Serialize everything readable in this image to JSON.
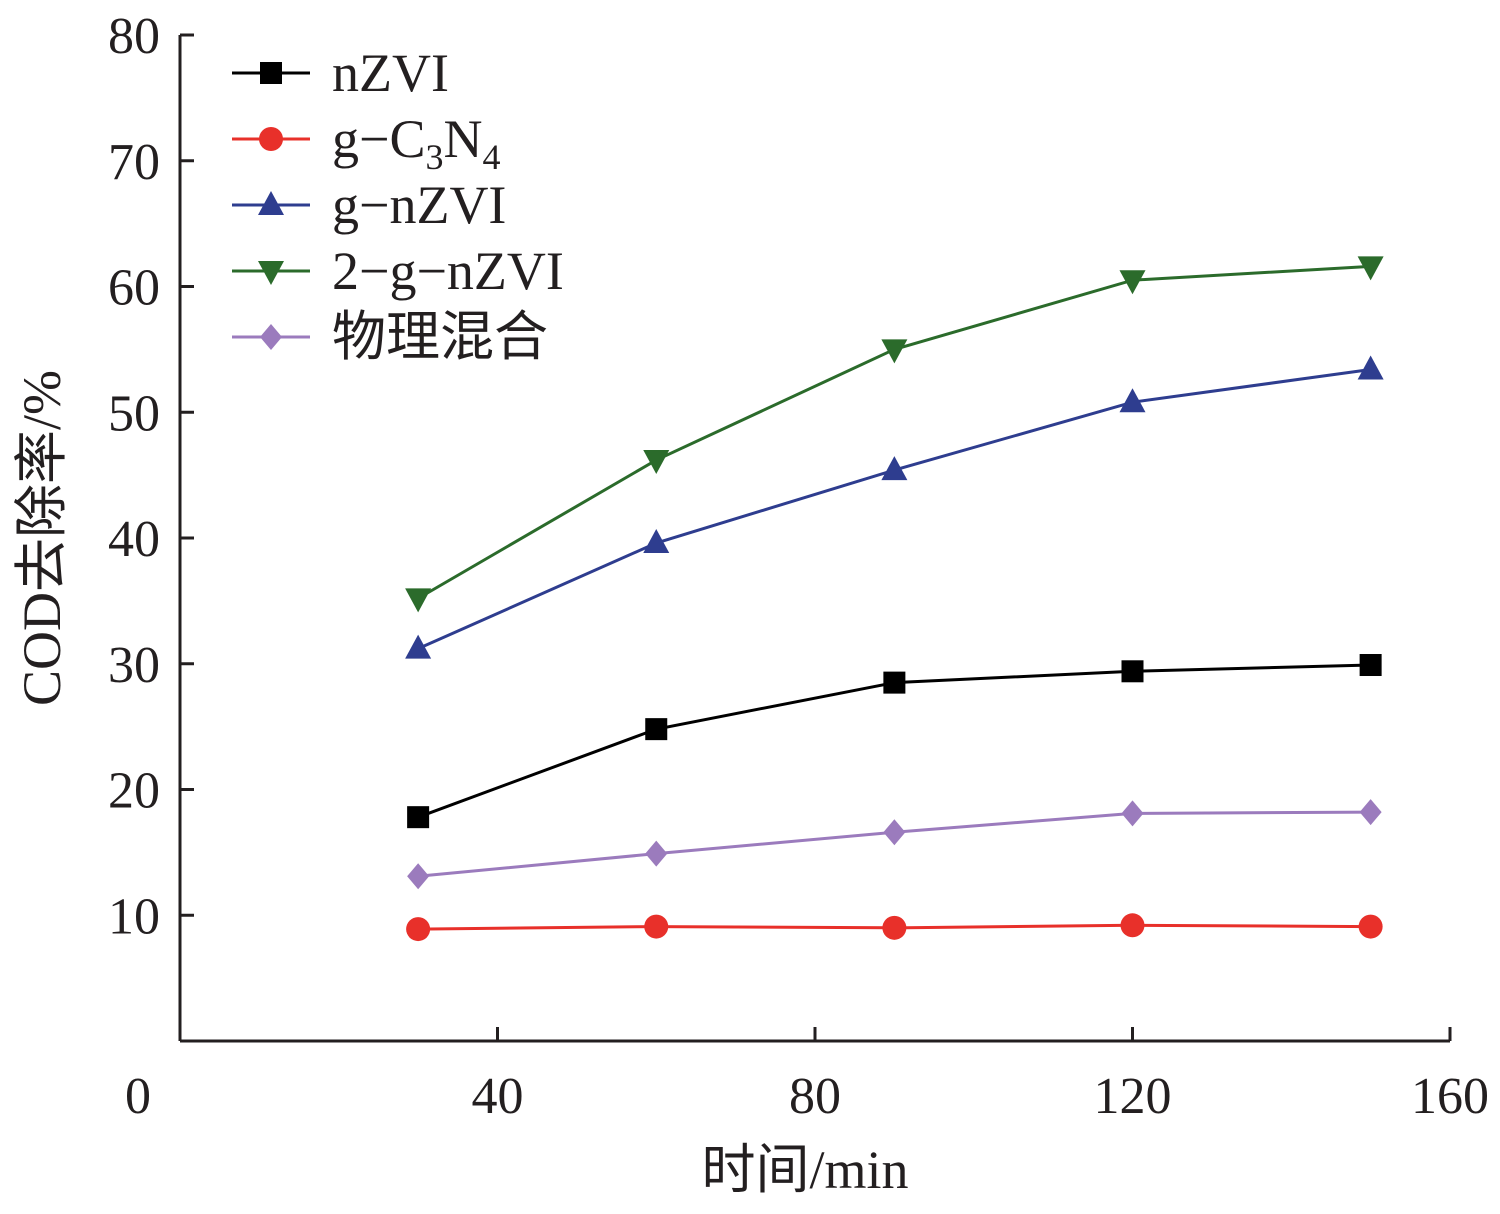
{
  "chart_data": {
    "type": "line",
    "xlabel": "时间/min",
    "ylabel": "COD去除率/%",
    "xlim": [
      0,
      160
    ],
    "ylim": [
      0,
      80
    ],
    "xticks": [
      0,
      40,
      80,
      120,
      160
    ],
    "yticks": [
      10,
      20,
      30,
      40,
      50,
      60,
      70,
      80
    ],
    "x": [
      30,
      60,
      90,
      120,
      150
    ],
    "grid": false,
    "legend_position": "top-left",
    "series": [
      {
        "name": "nZVI",
        "name_main": "nZVI",
        "color": "#000000",
        "marker": "square",
        "values": [
          17.8,
          24.8,
          28.5,
          29.4,
          29.9
        ]
      },
      {
        "name": "g-C3N4",
        "name_main": "g−C",
        "name_sub1": "3",
        "name_mid": "N",
        "name_sub2": "4",
        "color": "#e8302a",
        "marker": "circle",
        "values": [
          8.9,
          9.1,
          9.0,
          9.2,
          9.1
        ]
      },
      {
        "name": "g-nZVI",
        "name_main": "g−nZVI",
        "color": "#2e3d8f",
        "marker": "triangle-up",
        "values": [
          31.2,
          39.6,
          45.4,
          50.8,
          53.4
        ]
      },
      {
        "name": "2-g-nZVI",
        "name_main": "2−g−nZVI",
        "color": "#2b6b2b",
        "marker": "triangle-down",
        "values": [
          35.2,
          46.2,
          55.0,
          60.5,
          61.6
        ]
      },
      {
        "name": "物理混合",
        "name_main": "物理混合",
        "color": "#9b7bbd",
        "marker": "diamond",
        "values": [
          13.1,
          14.9,
          16.6,
          18.1,
          18.2
        ]
      }
    ]
  }
}
